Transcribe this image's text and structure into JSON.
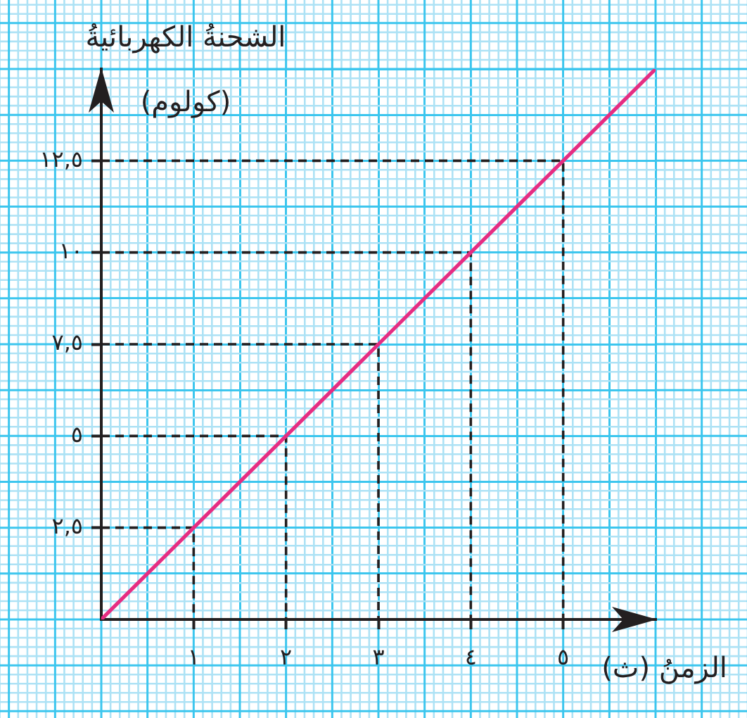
{
  "chart_data": {
    "type": "line",
    "xlabel": "الزمنُ (ث)",
    "ylabel": "الشحنةُ الكهربائيةُ\n(كولوم)",
    "xlim": [
      0,
      6
    ],
    "ylim": [
      0,
      15
    ],
    "xticks": [
      {
        "value": 0,
        "label": null
      },
      {
        "value": 0.1,
        "label": null
      },
      {
        "value": 0.2,
        "label": null
      },
      {
        "value": 0.3,
        "label": null
      },
      {
        "value": 0.4,
        "label": null
      },
      {
        "value": 0.5,
        "label": null
      },
      {
        "value": 0.6,
        "label": null
      },
      {
        "value": 0.7,
        "label": null
      },
      {
        "value": 0.8,
        "label": null
      },
      {
        "value": 0.9,
        "label": null
      },
      {
        "value": 1,
        "label": "١"
      },
      {
        "value": 1.1,
        "label": null
      },
      {
        "value": 1.2,
        "label": null
      },
      {
        "value": 1.3,
        "label": null
      },
      {
        "value": 1.4,
        "label": null
      },
      {
        "value": 1.5,
        "label": null
      },
      {
        "value": 1.6,
        "label": null
      },
      {
        "value": 1.7,
        "label": null
      },
      {
        "value": 1.8,
        "label": null
      },
      {
        "value": 1.9,
        "label": null
      },
      {
        "value": 2,
        "label": "٢"
      },
      {
        "value": 2.1,
        "label": null
      },
      {
        "value": 2.2,
        "label": null
      },
      {
        "value": 2.3,
        "label": null
      },
      {
        "value": 2.4,
        "label": null
      },
      {
        "value": 2.5,
        "label": null
      },
      {
        "value": 2.6,
        "label": null
      },
      {
        "value": 2.7,
        "label": null
      },
      {
        "value": 2.8,
        "label": null
      },
      {
        "value": 2.9,
        "label": null
      },
      {
        "value": 3,
        "label": "٣"
      },
      {
        "value": 3.1,
        "label": null
      },
      {
        "value": 3.2,
        "label": null
      },
      {
        "value": 3.3,
        "label": null
      },
      {
        "value": 3.4,
        "label": null
      },
      {
        "value": 3.5,
        "label": null
      },
      {
        "value": 3.6,
        "label": null
      },
      {
        "value": 3.7,
        "label": null
      },
      {
        "value": 3.8,
        "label": null
      },
      {
        "value": 3.9,
        "label": null
      },
      {
        "value": 4,
        "label": "٤"
      },
      {
        "value": 4.1,
        "label": null
      },
      {
        "value": 4.2,
        "label": null
      },
      {
        "value": 4.3,
        "label": null
      },
      {
        "value": 4.4,
        "label": null
      },
      {
        "value": 4.5,
        "label": null
      },
      {
        "value": 4.6,
        "label": null
      },
      {
        "value": 4.7,
        "label": null
      },
      {
        "value": 4.8,
        "label": null
      },
      {
        "value": 4.9,
        "label": null
      },
      {
        "value": 5,
        "label": "٥"
      },
      {
        "value": 5.1,
        "label": null
      },
      {
        "value": 5.2,
        "label": null
      },
      {
        "value": 5.3,
        "label": null
      },
      {
        "value": 5.4,
        "label": null
      },
      {
        "value": 5.5,
        "label": null
      },
      {
        "value": 5.6,
        "label": null
      },
      {
        "value": 5.7,
        "label": null
      },
      {
        "value": 5.8,
        "label": null
      },
      {
        "value": 5.9,
        "label": null
      },
      {
        "value": 6,
        "label": null
      }
    ],
    "yticks": [
      {
        "value": 0,
        "label": null
      },
      {
        "value": 0.25,
        "label": null
      },
      {
        "value": 0.5,
        "label": null
      },
      {
        "value": 0.75,
        "label": null
      },
      {
        "value": 1,
        "label": null
      },
      {
        "value": 1.25,
        "label": null
      },
      {
        "value": 1.5,
        "label": null
      },
      {
        "value": 1.75,
        "label": null
      },
      {
        "value": 2,
        "label": null
      },
      {
        "value": 2.25,
        "label": null
      },
      {
        "value": 2.5,
        "label": "٢,٥"
      },
      {
        "value": 2.75,
        "label": null
      },
      {
        "value": 3,
        "label": null
      },
      {
        "value": 3.25,
        "label": null
      },
      {
        "value": 3.5,
        "label": null
      },
      {
        "value": 3.75,
        "label": null
      },
      {
        "value": 4,
        "label": null
      },
      {
        "value": 4.25,
        "label": null
      },
      {
        "value": 4.5,
        "label": null
      },
      {
        "value": 4.75,
        "label": null
      },
      {
        "value": 5,
        "label": "٥"
      },
      {
        "value": 5.25,
        "label": null
      },
      {
        "value": 5.5,
        "label": null
      },
      {
        "value": 5.75,
        "label": null
      },
      {
        "value": 6,
        "label": null
      },
      {
        "value": 6.25,
        "label": null
      },
      {
        "value": 6.5,
        "label": null
      },
      {
        "value": 6.75,
        "label": null
      },
      {
        "value": 7,
        "label": null
      },
      {
        "value": 7.25,
        "label": null
      },
      {
        "value": 7.5,
        "label": "٧,٥"
      },
      {
        "value": 7.75,
        "label": null
      },
      {
        "value": 8,
        "label": null
      },
      {
        "value": 8.25,
        "label": null
      },
      {
        "value": 8.5,
        "label": null
      },
      {
        "value": 8.75,
        "label": null
      },
      {
        "value": 9,
        "label": null
      },
      {
        "value": 9.25,
        "label": null
      },
      {
        "value": 9.5,
        "label": null
      },
      {
        "value": 9.75,
        "label": null
      },
      {
        "value": 10,
        "label": "١٠"
      },
      {
        "value": 10.25,
        "label": null
      },
      {
        "value": 10.5,
        "label": null
      },
      {
        "value": 10.75,
        "label": null
      },
      {
        "value": 11,
        "label": null
      },
      {
        "value": 11.25,
        "label": null
      },
      {
        "value": 11.5,
        "label": null
      },
      {
        "value": 11.75,
        "label": null
      },
      {
        "value": 12,
        "label": null
      },
      {
        "value": 12.25,
        "label": null
      },
      {
        "value": 12.5,
        "label": "١٢,٥"
      },
      {
        "value": 12.75,
        "label": null
      },
      {
        "value": 13,
        "label": null
      },
      {
        "value": 13.25,
        "label": null
      },
      {
        "value": 13.5,
        "label": null
      },
      {
        "value": 13.75,
        "label": null
      },
      {
        "value": 14,
        "label": null
      },
      {
        "value": 14.25,
        "label": null
      },
      {
        "value": 14.5,
        "label": null
      },
      {
        "value": 14.75,
        "label": null
      },
      {
        "value": 15,
        "label": null
      }
    ],
    "grid": true,
    "marker": "none",
    "series": [
      {
        "color": "#e62d82",
        "x": [
          0,
          1,
          2,
          3,
          4,
          5,
          6
        ],
        "values": [
          0,
          2.5,
          5,
          7.5,
          10,
          12.5,
          15
        ]
      },
      {
        "color": "#231f20",
        "line_style": "dashed",
        "x": [
          0,
          1,
          1
        ],
        "values": [
          2.5,
          2.5,
          0
        ]
      },
      {
        "color": "#231f20",
        "line_style": "dashed",
        "x": [
          0,
          2,
          2
        ],
        "values": [
          5,
          5,
          0
        ]
      },
      {
        "color": "#231f20",
        "line_style": "dashed",
        "x": [
          0,
          3,
          3
        ],
        "values": [
          7.5,
          7.5,
          0
        ]
      },
      {
        "color": "#231f20",
        "line_style": "dashed",
        "x": [
          0,
          4,
          4
        ],
        "values": [
          10,
          10,
          0
        ]
      },
      {
        "color": "#231f20",
        "line_style": "dashed",
        "x": [
          0,
          5,
          5
        ],
        "values": [
          12.5,
          12.5,
          0
        ]
      }
    ]
  }
}
